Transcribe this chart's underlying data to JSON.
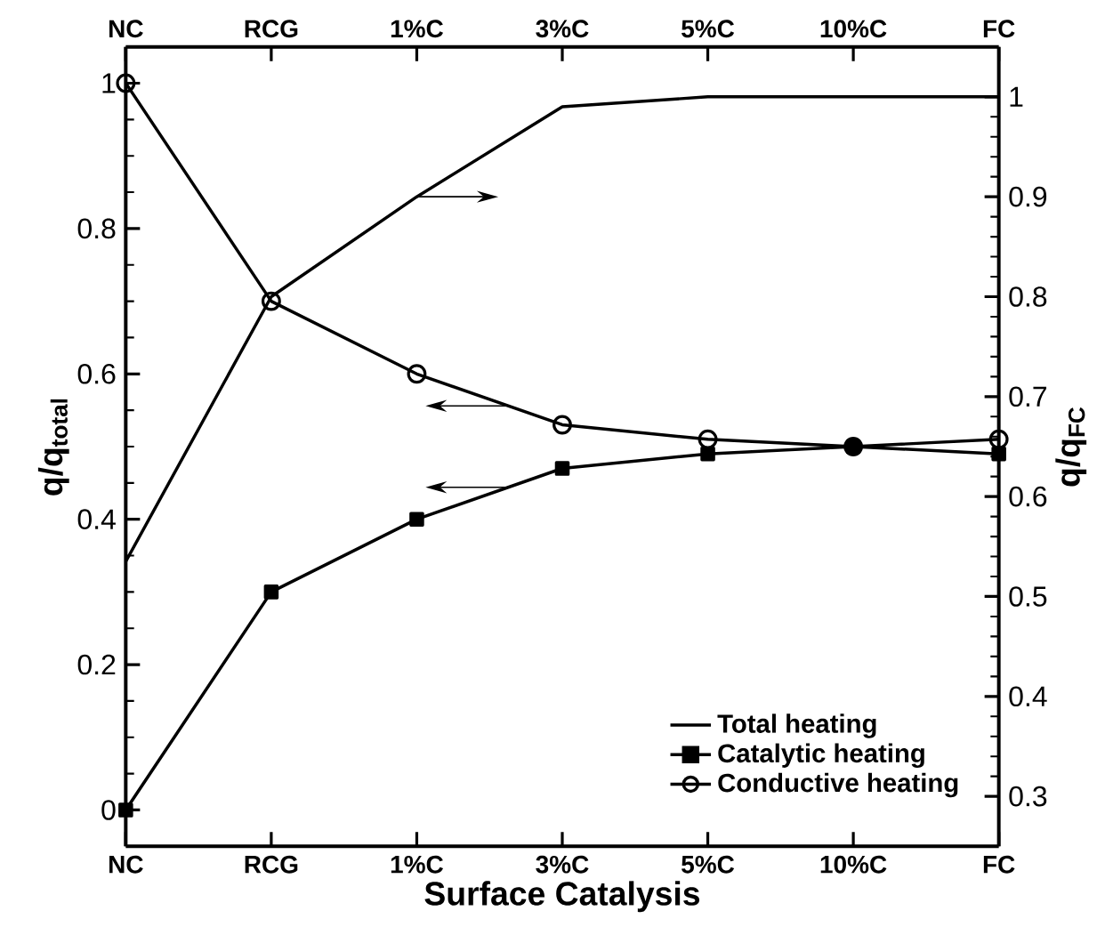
{
  "chart_data": {
    "type": "line",
    "xlabel": "Surface Catalysis",
    "ylabel": "q/q$_{total}$",
    "y2label": "q/q$_{FC}$",
    "categories": [
      "NC",
      "RCG",
      "1%C",
      "3%C",
      "5%C",
      "10%C",
      "FC"
    ],
    "series": [
      {
        "name": "Total heating",
        "color": "#000000",
        "axis": "y2",
        "marker": "none",
        "values": [
          0.535,
          0.8,
          0.9,
          0.99,
          1.0,
          1.0,
          1.0
        ]
      },
      {
        "name": "Catalytic heating",
        "color": "#000000",
        "axis": "y",
        "marker": "square",
        "values": [
          0,
          0.3,
          0.4,
          0.47,
          0.49,
          0.5,
          0.49
        ]
      },
      {
        "name": "Conductive heating",
        "color": "#000000",
        "axis": "y",
        "marker": "circle",
        "values": [
          1,
          0.7,
          0.6,
          0.53,
          0.51,
          0.5,
          0.51
        ]
      }
    ],
    "ylim": [
      -0.05,
      1.05
    ],
    "yticks": [
      0,
      0.2,
      0.4,
      0.6,
      0.8,
      1
    ],
    "y2lim": [
      0.25,
      1.05
    ],
    "y2ticks": [
      0.3,
      0.4,
      0.5,
      0.6,
      0.7,
      0.8,
      0.9,
      1
    ],
    "legend": "bottom right",
    "line_style": "solid",
    "grid": false
  }
}
